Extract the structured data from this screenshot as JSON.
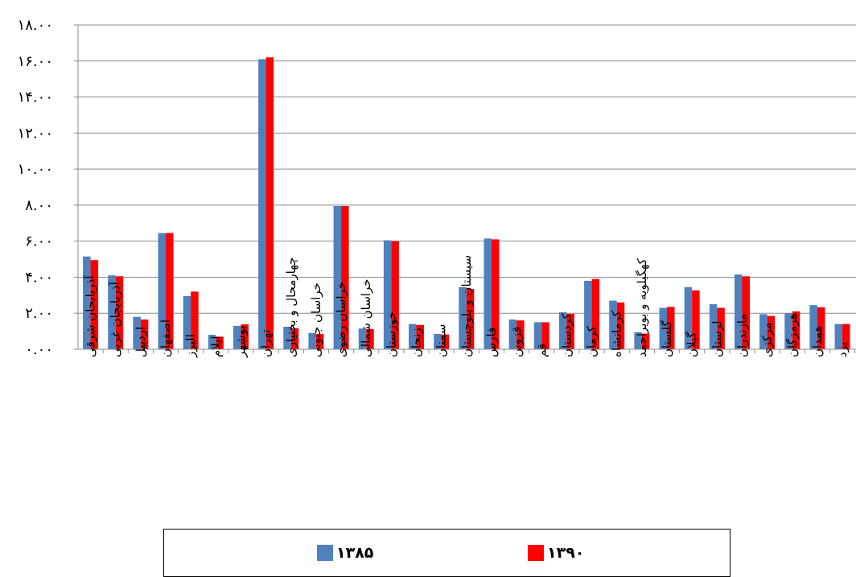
{
  "chart_data": {
    "type": "bar",
    "title": "",
    "xlabel": "",
    "ylabel": "",
    "ylim": [
      0,
      18
    ],
    "y_ticks": [
      "۰.۰۰",
      "۲.۰۰",
      "۴.۰۰",
      "۶.۰۰",
      "۸.۰۰",
      "۱۰.۰۰",
      "۱۲.۰۰",
      "۱۴.۰۰",
      "۱۶.۰۰",
      "۱۸.۰۰"
    ],
    "grid": true,
    "legend_position": "bottom",
    "categories": [
      "آذربایجان شرقی",
      "آذربایجان غربی",
      "اردبیل",
      "اصفهان",
      "البرز",
      "ایلام",
      "بوشهر",
      "تهران",
      "چهارمحال و بختیاری",
      "خراسان جنوبی",
      "خراسان رضوی",
      "خراسان شمالی",
      "خوزستان",
      "زنجان",
      "سمنان",
      "سیستان و بلوچستان",
      "فارس",
      "قزوین",
      "قم",
      "کردستان",
      "کرمان",
      "کرمانشاه",
      "کهگیلویه و بویراحمد",
      "گلستان",
      "گیلان",
      "لرستان",
      "مازندران",
      "مرکزی",
      "هرمزگان",
      "همدان",
      "یزد"
    ],
    "series": [
      {
        "name": "۱۳۸۵",
        "color": "#4f81bd",
        "values": [
          5.15,
          4.1,
          1.8,
          6.45,
          2.95,
          0.8,
          1.3,
          16.1,
          1.25,
          0.9,
          7.95,
          1.15,
          6.05,
          1.4,
          0.85,
          3.45,
          6.15,
          1.65,
          1.5,
          2.05,
          3.8,
          2.7,
          0.95,
          2.3,
          3.45,
          2.5,
          4.15,
          1.95,
          2.0,
          2.45,
          1.4
        ]
      },
      {
        "name": "۱۳۹۰",
        "color": "#ff0000",
        "values": [
          4.95,
          4.05,
          1.65,
          6.45,
          3.2,
          0.7,
          1.38,
          16.2,
          1.17,
          0.85,
          7.95,
          1.12,
          6.0,
          1.35,
          0.82,
          3.35,
          6.1,
          1.6,
          1.5,
          1.97,
          3.9,
          2.6,
          0.87,
          2.35,
          3.27,
          2.3,
          4.05,
          1.85,
          2.1,
          2.33,
          1.4
        ]
      }
    ]
  }
}
